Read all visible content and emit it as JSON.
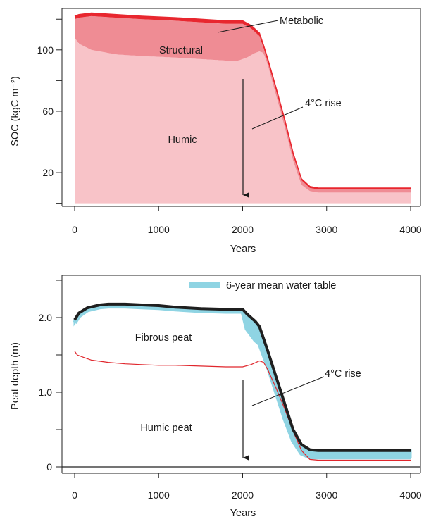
{
  "colors": {
    "humic_fill": "#f8c3c8",
    "structural_fill": "#ef8c94",
    "metabolic_line": "#e8272f",
    "water_table": "#8fd4e3",
    "surface_line": "#1f1f1f",
    "humic_boundary": "#e0262c",
    "axis": "#222222"
  },
  "chart_data": [
    {
      "type": "area",
      "title": "",
      "xlabel": "Years",
      "ylabel": "SOC (kgC m⁻²)",
      "xlim": [
        0,
        4000
      ],
      "ylim": [
        -2,
        127
      ],
      "xticks": [
        "0",
        "1000",
        "2000",
        "3000",
        "4000"
      ],
      "yticks": [
        "20",
        "60",
        "100"
      ],
      "grid": false,
      "series": [
        {
          "name": "Humic",
          "x": [
            0,
            50,
            200,
            500,
            800,
            1200,
            1500,
            1800,
            1950,
            2050,
            2150,
            2200,
            2250,
            2300,
            2400,
            2500,
            2600,
            2700,
            2800,
            2900,
            3000,
            3500,
            4000
          ],
          "values": [
            108,
            104,
            100,
            97,
            96,
            95,
            94,
            93,
            93,
            95,
            98,
            99,
            98,
            90,
            70,
            50,
            28,
            12,
            8,
            7,
            7,
            7,
            7
          ]
        },
        {
          "name": "Structural",
          "x": [
            0,
            50,
            200,
            500,
            800,
            1200,
            1500,
            1800,
            2000,
            2100,
            2200,
            2250,
            2300,
            2400,
            2500,
            2600,
            2700,
            2800,
            2900,
            3000,
            3500,
            4000
          ],
          "values": [
            120,
            121,
            122,
            121,
            120,
            119,
            118,
            117,
            117,
            114,
            109,
            101,
            92,
            73,
            53,
            31,
            15,
            10,
            9,
            9,
            9,
            9
          ]
        },
        {
          "name": "Metabolic",
          "x": [
            0,
            50,
            200,
            500,
            800,
            1200,
            1500,
            1800,
            2000,
            2100,
            2200,
            2250,
            2300,
            2400,
            2500,
            2600,
            2700,
            2800,
            2900,
            3000,
            3500,
            4000
          ],
          "values": [
            122,
            123,
            124,
            123,
            122,
            121,
            120,
            119,
            119,
            116,
            111,
            103,
            94,
            75,
            55,
            33,
            16,
            11,
            10,
            10,
            10,
            10
          ]
        }
      ],
      "annotations": [
        "Structural",
        "Humic",
        "Metabolic",
        "4°C rise"
      ]
    },
    {
      "type": "line",
      "title": "",
      "xlabel": "Years",
      "ylabel": "Peat depth (m)",
      "xlim": [
        -100,
        4100
      ],
      "ylim": [
        -0.05,
        2.55
      ],
      "xticks": [
        "0",
        "1000",
        "2000",
        "3000",
        "4000"
      ],
      "yticks": [
        "0",
        "1.0",
        "2.0"
      ],
      "grid": false,
      "legend": {
        "position": "top-center",
        "entries": [
          "6-year mean water table"
        ]
      },
      "series": [
        {
          "name": "Peat surface",
          "x": [
            0,
            50,
            150,
            300,
            400,
            600,
            800,
            1000,
            1200,
            1500,
            1800,
            2000,
            2050,
            2150,
            2200,
            2300,
            2400,
            2500,
            2600,
            2700,
            2800,
            2900,
            3000,
            3500,
            4000
          ],
          "values": [
            1.97,
            2.06,
            2.13,
            2.17,
            2.18,
            2.18,
            2.17,
            2.16,
            2.14,
            2.12,
            2.11,
            2.11,
            2.05,
            1.95,
            1.88,
            1.55,
            1.2,
            0.85,
            0.5,
            0.3,
            0.23,
            0.22,
            0.22,
            0.22,
            0.22
          ]
        },
        {
          "name": "6-year mean water table",
          "x": [
            0,
            50,
            150,
            300,
            400,
            600,
            800,
            1000,
            1200,
            1500,
            1800,
            2000,
            2050,
            2150,
            2200,
            2300,
            2400,
            2500,
            2600,
            2700,
            2800,
            2900,
            3000,
            3500,
            4000
          ],
          "values": [
            1.93,
            2.02,
            2.1,
            2.14,
            2.15,
            2.15,
            2.14,
            2.13,
            2.11,
            2.09,
            2.08,
            2.08,
            1.85,
            1.7,
            1.65,
            1.35,
            1.0,
            0.65,
            0.35,
            0.18,
            0.13,
            0.13,
            0.13,
            0.13,
            0.13
          ]
        },
        {
          "name": "Fibrous/humic peat boundary",
          "x": [
            0,
            30,
            100,
            200,
            400,
            600,
            800,
            1000,
            1200,
            1500,
            1800,
            2000,
            2100,
            2200,
            2250,
            2300,
            2400,
            2500,
            2600,
            2700,
            2800,
            2900,
            3000,
            3500,
            4000
          ],
          "values": [
            1.55,
            1.5,
            1.47,
            1.43,
            1.4,
            1.38,
            1.37,
            1.36,
            1.36,
            1.35,
            1.34,
            1.34,
            1.37,
            1.42,
            1.4,
            1.3,
            1.05,
            0.78,
            0.48,
            0.22,
            0.1,
            0.09,
            0.09,
            0.09,
            0.09
          ]
        }
      ],
      "annotations": [
        "Fibrous peat",
        "Humic peat",
        "4°C rise"
      ]
    }
  ]
}
